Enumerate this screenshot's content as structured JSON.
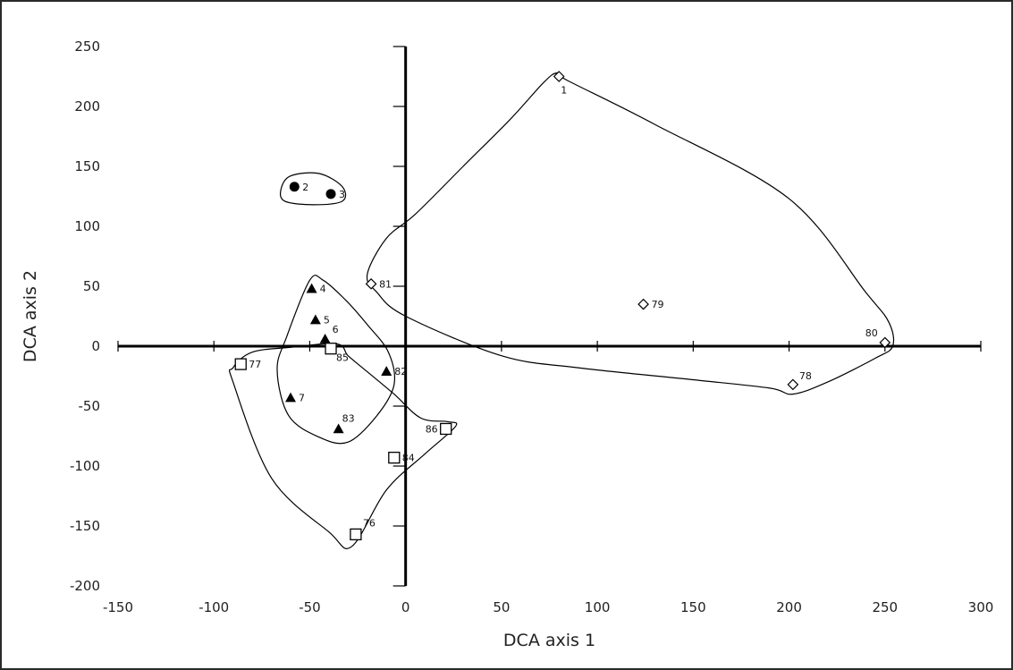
{
  "chart_data": {
    "type": "scatter",
    "title": "",
    "xlabel": "DCA axis 1",
    "ylabel": "DCA axis 2",
    "xlim": [
      -150,
      300
    ],
    "ylim": [
      -200,
      250
    ],
    "x_ticks": [
      -150,
      -100,
      -50,
      0,
      50,
      100,
      150,
      200,
      250,
      300
    ],
    "y_ticks": [
      250,
      200,
      150,
      100,
      50,
      0,
      -50,
      -100,
      -150,
      -200
    ],
    "axes_cross_at_origin": true,
    "grid": false,
    "legend": "none",
    "series": [
      {
        "marker": "circle-filled",
        "points": [
          {
            "label": "2",
            "x": -58,
            "y": 133
          },
          {
            "label": "3",
            "x": -39,
            "y": 127
          }
        ]
      },
      {
        "marker": "triangle-filled",
        "points": [
          {
            "label": "4",
            "x": -49,
            "y": 48
          },
          {
            "label": "5",
            "x": -47,
            "y": 22
          },
          {
            "label": "6",
            "x": -42,
            "y": 6
          },
          {
            "label": "7",
            "x": -60,
            "y": -43
          },
          {
            "label": "83",
            "x": -35,
            "y": -69
          },
          {
            "label": "82",
            "x": -10,
            "y": -21
          }
        ]
      },
      {
        "marker": "square-open",
        "points": [
          {
            "label": "85",
            "x": -39,
            "y": -2
          },
          {
            "label": "77",
            "x": -86,
            "y": -15
          },
          {
            "label": "86",
            "x": 21,
            "y": -69
          },
          {
            "label": "84",
            "x": -6,
            "y": -93
          },
          {
            "label": "76",
            "x": -26,
            "y": -157
          }
        ]
      },
      {
        "marker": "diamond-open",
        "points": [
          {
            "label": "1",
            "x": 80,
            "y": 225
          },
          {
            "label": "81",
            "x": -18,
            "y": 52
          },
          {
            "label": "79",
            "x": 124,
            "y": 35
          },
          {
            "label": "80",
            "x": 250,
            "y": 3
          },
          {
            "label": "78",
            "x": 202,
            "y": -32
          }
        ]
      }
    ],
    "hulls": [
      [
        [
          -65,
          131
        ],
        [
          -60,
          142
        ],
        [
          -45,
          144
        ],
        [
          -33,
          133
        ],
        [
          -33,
          121
        ],
        [
          -48,
          118
        ],
        [
          -63,
          121
        ]
      ],
      [
        [
          -50,
          55
        ],
        [
          -43,
          55
        ],
        [
          -31,
          38
        ],
        [
          -20,
          18
        ],
        [
          -9,
          -5
        ],
        [
          -6,
          -32
        ],
        [
          -15,
          -58
        ],
        [
          -30,
          -80
        ],
        [
          -45,
          -76
        ],
        [
          -61,
          -58
        ],
        [
          -67,
          -20
        ],
        [
          -62,
          8
        ]
      ],
      [
        [
          -80,
          -5
        ],
        [
          -60,
          -1
        ],
        [
          -36,
          2
        ],
        [
          -30,
          -8
        ],
        [
          -21,
          -20
        ],
        [
          -6,
          -40
        ],
        [
          8,
          -60
        ],
        [
          22,
          -63
        ],
        [
          26,
          -67
        ],
        [
          10,
          -90
        ],
        [
          -10,
          -120
        ],
        [
          -28,
          -167
        ],
        [
          -40,
          -155
        ],
        [
          -70,
          -110
        ],
        [
          -90,
          -30
        ],
        [
          -90,
          -18
        ]
      ],
      [
        [
          79,
          228
        ],
        [
          84,
          222
        ],
        [
          130,
          185
        ],
        [
          200,
          123
        ],
        [
          240,
          45
        ],
        [
          252,
          20
        ],
        [
          254,
          0
        ],
        [
          245,
          -10
        ],
        [
          220,
          -30
        ],
        [
          202,
          -40
        ],
        [
          190,
          -35
        ],
        [
          150,
          -28
        ],
        [
          90,
          -18
        ],
        [
          50,
          -8
        ],
        [
          0,
          25
        ],
        [
          -15,
          45
        ],
        [
          -20,
          60
        ],
        [
          -10,
          90
        ],
        [
          5,
          110
        ],
        [
          30,
          150
        ],
        [
          55,
          190
        ],
        [
          72,
          220
        ]
      ]
    ]
  }
}
